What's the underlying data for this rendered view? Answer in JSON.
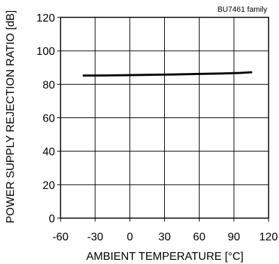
{
  "chart_data": {
    "type": "line",
    "annotation": "BU7461 family",
    "xlabel": "AMBIENT TEMPERATURE [°C]",
    "ylabel": "POWER SUPPLY REJECTION RATIO [dB]",
    "xlim": [
      -60,
      120
    ],
    "ylim": [
      0,
      120
    ],
    "xticks": [
      -60,
      -30,
      0,
      30,
      60,
      90,
      120
    ],
    "yticks": [
      0,
      20,
      40,
      60,
      80,
      100,
      120
    ],
    "xtick_labels": [
      "-60",
      "-30",
      "0",
      "30",
      "60",
      "90",
      "120"
    ],
    "ytick_labels": [
      "0",
      "20",
      "40",
      "60",
      "80",
      "100",
      "120"
    ],
    "grid": true,
    "series": [
      {
        "x": [
          -40,
          -20,
          0,
          20,
          40,
          60,
          80,
          95,
          105
        ],
        "y": [
          85.2,
          85.3,
          85.5,
          85.7,
          85.9,
          86.2,
          86.5,
          86.8,
          87.2
        ]
      }
    ]
  }
}
